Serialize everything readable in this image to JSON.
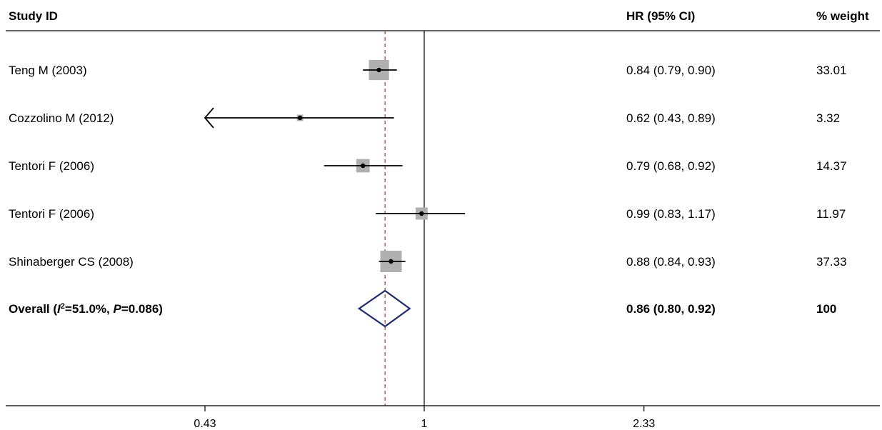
{
  "chart_data": {
    "type": "forest",
    "columns": {
      "study": "Study ID",
      "effect": "HR (95% CI)",
      "weight": "% weight"
    },
    "studies": [
      {
        "label": "Teng M (2003)",
        "hr": 0.84,
        "lo": 0.79,
        "hi": 0.9,
        "ci_text": "0.84 (0.79, 0.90)",
        "weight": 33.01,
        "weight_text": "33.01"
      },
      {
        "label": "Cozzolino M (2012)",
        "hr": 0.62,
        "lo": 0.43,
        "hi": 0.89,
        "ci_text": "0.62 (0.43, 0.89)",
        "weight": 3.32,
        "weight_text": "3.32",
        "arrow_left": true
      },
      {
        "label": "Tentori F (2006)",
        "hr": 0.79,
        "lo": 0.68,
        "hi": 0.92,
        "ci_text": "0.79 (0.68, 0.92)",
        "weight": 14.37,
        "weight_text": "14.37"
      },
      {
        "label": "Tentori F (2006)",
        "hr": 0.99,
        "lo": 0.83,
        "hi": 1.17,
        "ci_text": "0.99 (0.83, 1.17)",
        "weight": 11.97,
        "weight_text": "11.97"
      },
      {
        "label": "Shinaberger CS (2008)",
        "hr": 0.88,
        "lo": 0.84,
        "hi": 0.93,
        "ci_text": "0.88 (0.84, 0.93)",
        "weight": 37.33,
        "weight_text": "37.33"
      }
    ],
    "overall": {
      "label_prefix": "Overall (",
      "label_i": "I",
      "label_sup": "2",
      "label_mid": "=51.0%, ",
      "label_p": "P",
      "label_end": "=0.086)",
      "hr": 0.86,
      "lo": 0.8,
      "hi": 0.92,
      "ci_text": "0.86 (0.80, 0.92)",
      "weight_text": "100"
    },
    "x_axis": {
      "scale": "log",
      "ticks": [
        0.43,
        1,
        2.33
      ],
      "tick_labels": [
        "0.43",
        "1",
        "2.33"
      ],
      "null_line": 1
    },
    "colors": {
      "box": "#b0b0b0",
      "line": "#000000",
      "diamond": "#1f2a6b",
      "overall_line": "#9b3b3b"
    }
  }
}
